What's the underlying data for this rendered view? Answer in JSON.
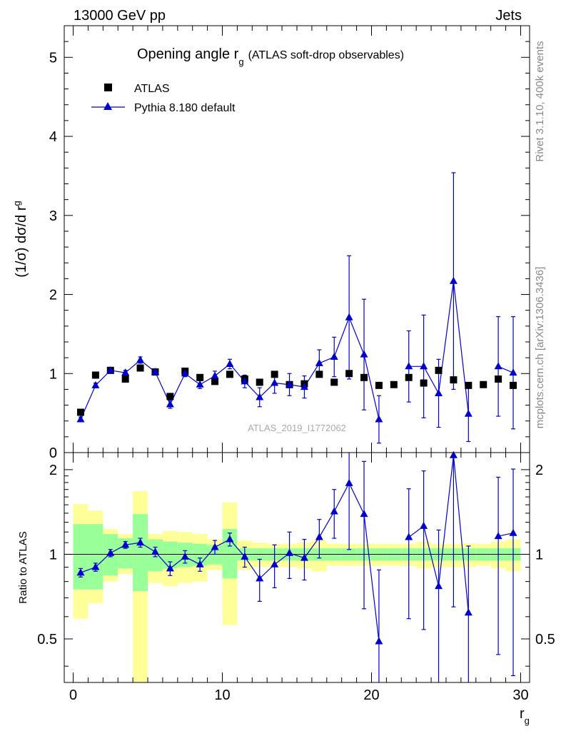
{
  "header": {
    "energy_label": "13000 GeV pp",
    "category_label": "Jets"
  },
  "side_labels": {
    "rivet": "Rivet 3.1.10,  400k events",
    "mcplots": "mcplots.cern.ch [arXiv:1306.3436]"
  },
  "colors": {
    "data": "#000000",
    "mc": "#0000cc",
    "band_inner": "#99ff99",
    "band_outer": "#ffff99",
    "side_text": "#888888"
  },
  "chart_data": [
    {
      "type": "scatter",
      "title": "Opening angle r",
      "title_sub": "g",
      "title_suffix": "(ATLAS soft-drop observables)",
      "ylabel": "(1/σ) dσ/d r",
      "ylabel_sub": "g",
      "ylim": [
        0,
        5.4
      ],
      "yticks": [
        0,
        1,
        2,
        3,
        4,
        5
      ],
      "ytick_labels": [
        "0",
        "1",
        "2",
        "3",
        "4",
        "5"
      ],
      "watermark": "ATLAS_2019_I1772062",
      "legend": [
        {
          "name": "ATLAS",
          "marker": "square"
        },
        {
          "name": "Pythia 8.180 default",
          "marker": "triangle"
        }
      ],
      "x": [
        0.5,
        1.5,
        2.5,
        3.5,
        4.5,
        5.5,
        6.5,
        7.5,
        8.5,
        9.5,
        10.5,
        11.5,
        12.5,
        13.5,
        14.5,
        15.5,
        16.5,
        17.5,
        18.5,
        19.5,
        20.5,
        21.5,
        22.5,
        23.5,
        24.5,
        25.5,
        26.5,
        27.5,
        28.5,
        29.5
      ],
      "series": [
        {
          "name": "ATLAS",
          "values": [
            0.51,
            0.98,
            1.04,
            0.93,
            1.07,
            1.02,
            0.71,
            1.03,
            0.95,
            0.9,
            0.99,
            0.93,
            0.89,
            0.99,
            0.86,
            0.87,
            0.99,
            0.89,
            1.0,
            0.95,
            0.85,
            0.86,
            0.95,
            0.88,
            1.04,
            0.92,
            0.85,
            0.86,
            0.93,
            0.85
          ]
        },
        {
          "name": "Pythia 8.180 default",
          "values": [
            0.42,
            0.85,
            1.04,
            1.01,
            1.17,
            1.02,
            0.61,
            1.0,
            0.86,
            0.97,
            1.12,
            0.9,
            0.7,
            0.88,
            0.86,
            0.83,
            1.13,
            1.21,
            1.71,
            1.24,
            0.42,
            null,
            1.09,
            1.09,
            0.75,
            2.17,
            0.49,
            null,
            1.09,
            1.01
          ],
          "errors": [
            0.03,
            0.03,
            0.03,
            0.03,
            0.04,
            0.04,
            0.05,
            0.04,
            0.05,
            0.06,
            0.06,
            0.08,
            0.12,
            0.13,
            0.14,
            0.14,
            0.17,
            0.25,
            0.78,
            0.7,
            0.3,
            null,
            0.45,
            0.65,
            0.43,
            1.37,
            0.35,
            null,
            0.63,
            0.71
          ]
        }
      ]
    },
    {
      "type": "scatter",
      "ylabel": "Ratio to ATLAS",
      "xlabel": "r",
      "xlabel_sub": "g",
      "xlim": [
        -0.6,
        30.6
      ],
      "ylim": [
        0.35,
        2.3
      ],
      "xticks": [
        0,
        10,
        20,
        30
      ],
      "xtick_labels": [
        "0",
        "10",
        "20",
        "30"
      ],
      "yticks": [
        0.5,
        1,
        2
      ],
      "ytick_labels": [
        "0.5",
        "1",
        "2"
      ],
      "bands": {
        "inner": [
          [
            0.75,
            1.28
          ],
          [
            0.75,
            1.28
          ],
          [
            0.84,
            1.18
          ],
          [
            0.89,
            1.14
          ],
          [
            0.74,
            1.39
          ],
          [
            0.87,
            1.13
          ],
          [
            0.89,
            1.11
          ],
          [
            0.9,
            1.1
          ],
          [
            0.91,
            1.09
          ],
          [
            0.92,
            1.08
          ],
          [
            0.82,
            1.23
          ],
          [
            0.95,
            1.05
          ],
          [
            0.95,
            1.05
          ],
          [
            0.95,
            1.05
          ],
          [
            0.95,
            1.05
          ],
          [
            0.95,
            1.05
          ],
          [
            0.95,
            1.05
          ],
          [
            0.95,
            1.05
          ],
          [
            0.95,
            1.05
          ],
          [
            0.95,
            1.05
          ],
          [
            0.95,
            1.05
          ],
          [
            0.95,
            1.05
          ],
          [
            0.95,
            1.05
          ],
          [
            0.95,
            1.05
          ],
          [
            0.95,
            1.05
          ],
          [
            0.95,
            1.05
          ],
          [
            0.95,
            1.05
          ],
          [
            0.95,
            1.05
          ],
          [
            0.95,
            1.05
          ],
          [
            0.95,
            1.05
          ]
        ],
        "outer": [
          [
            0.59,
            1.51
          ],
          [
            0.67,
            1.43
          ],
          [
            0.8,
            1.23
          ],
          [
            0.85,
            1.18
          ],
          [
            0.35,
            1.68
          ],
          [
            0.79,
            1.18
          ],
          [
            0.77,
            1.21
          ],
          [
            0.79,
            1.2
          ],
          [
            0.8,
            1.18
          ],
          [
            0.88,
            1.13
          ],
          [
            0.56,
            1.53
          ],
          [
            0.88,
            1.12
          ],
          [
            0.9,
            1.1
          ],
          [
            0.9,
            1.09
          ],
          [
            0.9,
            1.09
          ],
          [
            0.89,
            1.1
          ],
          [
            0.87,
            1.12
          ],
          [
            0.91,
            1.09
          ],
          [
            0.91,
            1.09
          ],
          [
            0.91,
            1.09
          ],
          [
            0.91,
            1.09
          ],
          [
            0.91,
            1.09
          ],
          [
            0.91,
            1.09
          ],
          [
            0.89,
            1.11
          ],
          [
            0.9,
            1.09
          ],
          [
            0.9,
            1.09
          ],
          [
            0.9,
            1.09
          ],
          [
            0.91,
            1.09
          ],
          [
            0.89,
            1.11
          ],
          [
            0.87,
            1.13
          ]
        ]
      },
      "series": [
        {
          "name": "Pythia 8.180 / ATLAS",
          "values": [
            0.86,
            0.9,
            1.01,
            1.08,
            1.1,
            1.02,
            0.89,
            0.98,
            0.92,
            1.06,
            1.13,
            0.98,
            0.82,
            0.92,
            1.01,
            0.97,
            1.15,
            1.42,
            1.79,
            1.39,
            0.49,
            null,
            1.15,
            1.26,
            0.77,
            2.25,
            0.62,
            null,
            1.16,
            1.19
          ],
          "errors": [
            0.03,
            0.03,
            0.03,
            0.03,
            0.04,
            0.04,
            0.05,
            0.05,
            0.05,
            0.06,
            0.06,
            0.08,
            0.14,
            0.16,
            0.19,
            0.16,
            0.18,
            0.28,
            0.75,
            0.75,
            0.39,
            null,
            0.56,
            0.72,
            0.45,
            1.6,
            0.45,
            null,
            0.72,
            0.82
          ]
        }
      ]
    }
  ]
}
